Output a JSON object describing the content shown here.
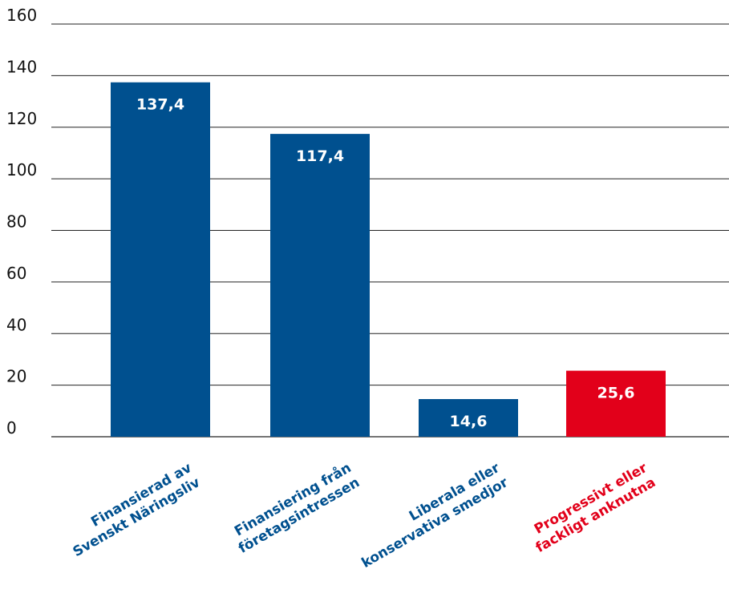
{
  "chart_data": {
    "type": "bar",
    "title": "",
    "xlabel": "",
    "ylabel": "",
    "ylim": [
      0,
      160
    ],
    "yticks": [
      0,
      20,
      40,
      60,
      80,
      100,
      120,
      140,
      160
    ],
    "grid": true,
    "categories": [
      [
        "Finansierad av",
        "Svenskt Näringsliv"
      ],
      [
        "Finansiering från",
        "företagsintressen"
      ],
      [
        "Liberala eller",
        "konservativa smedjor"
      ],
      [
        "Progressivt eller",
        "fackligt anknutna"
      ]
    ],
    "values": [
      137.4,
      117.4,
      14.6,
      25.6
    ],
    "value_labels": [
      "137,4",
      "117,4",
      "14,6",
      "25,6"
    ],
    "colors": [
      "#00508f",
      "#00508f",
      "#00508f",
      "#e2001a"
    ]
  }
}
